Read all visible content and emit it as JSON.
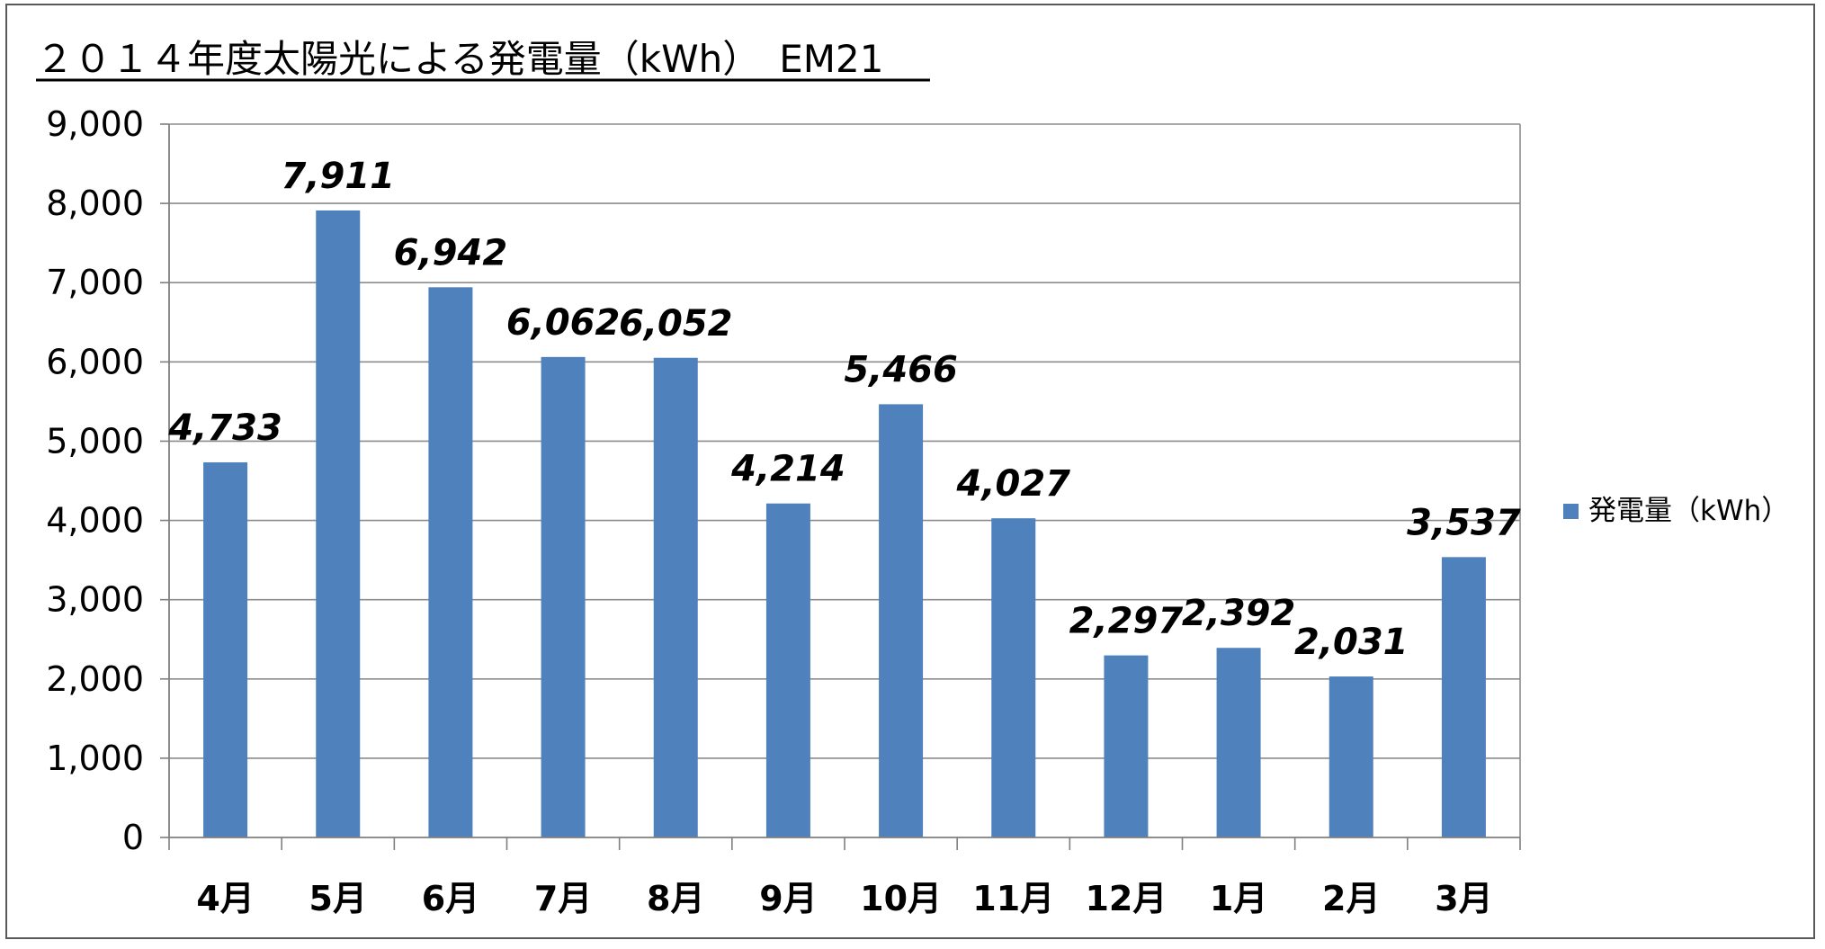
{
  "chart_data": {
    "type": "bar",
    "title": "２０１４年度太陽光による発電量（kWh）　EM21",
    "categories": [
      "4月",
      "5月",
      "6月",
      "7月",
      "8月",
      "9月",
      "10月",
      "11月",
      "12月",
      "1月",
      "2月",
      "3月"
    ],
    "series": [
      {
        "name": "発電量（kWh）",
        "values": [
          4733,
          7911,
          6942,
          6062,
          6052,
          4214,
          5466,
          4027,
          2297,
          2392,
          2031,
          3537
        ],
        "data_labels": [
          "4,733",
          "7,911",
          "6,942",
          "6,062",
          "6,052",
          "4,214",
          "5,466",
          "4,027",
          "2,297",
          "2,392",
          "2,031",
          "3,537"
        ],
        "color": "#4F81BD"
      }
    ],
    "yticks": [
      "0",
      "1,000",
      "2,000",
      "3,000",
      "4,000",
      "5,000",
      "6,000",
      "7,000",
      "8,000",
      "9,000"
    ],
    "ylim": [
      0,
      9000
    ],
    "grid": true,
    "legend_position": "right"
  }
}
